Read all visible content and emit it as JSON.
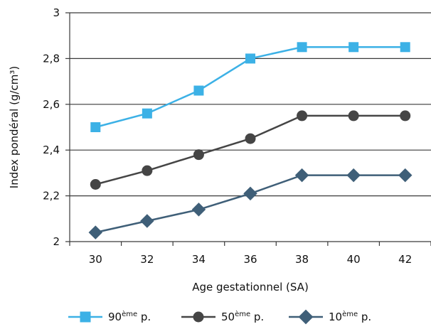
{
  "chart_data": {
    "type": "line",
    "xlabel": "Age gestationnel (SA)",
    "ylabel": "Index pondéral (g/cm³)",
    "x": [
      30,
      32,
      34,
      36,
      38,
      40,
      42
    ],
    "x_ticks": [
      "30",
      "32",
      "34",
      "36",
      "38",
      "40",
      "42"
    ],
    "xlim": [
      29,
      43
    ],
    "ylim": [
      2,
      3
    ],
    "y_ticks": [
      "2",
      "2,2",
      "2,4",
      "2,6",
      "2,8",
      "3"
    ],
    "y_tick_values": [
      2,
      2.2,
      2.4,
      2.6,
      2.8,
      3
    ],
    "grid": "horizontal",
    "legend_position": "bottom",
    "series": [
      {
        "name_main": "90",
        "name_sup": "ème",
        "name_suffix": " p.",
        "marker": "square",
        "color": "#3cb1e6",
        "values": [
          2.5,
          2.56,
          2.66,
          2.8,
          2.85,
          2.85,
          2.85
        ]
      },
      {
        "name_main": "50",
        "name_sup": "ème",
        "name_suffix": " p.",
        "marker": "circle",
        "color": "#454545",
        "values": [
          2.25,
          2.31,
          2.38,
          2.45,
          2.55,
          2.55,
          2.55
        ]
      },
      {
        "name_main": "10",
        "name_sup": "ème",
        "name_suffix": " p.",
        "marker": "diamond",
        "color": "#3f5f78",
        "values": [
          2.04,
          2.09,
          2.14,
          2.21,
          2.29,
          2.29,
          2.29
        ]
      }
    ]
  }
}
